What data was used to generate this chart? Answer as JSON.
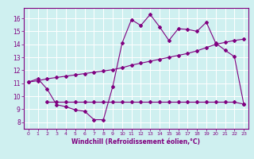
{
  "xlabel": "Windchill (Refroidissement éolien,°C)",
  "background_color": "#cff0f0",
  "grid_color": "#ffffff",
  "line_color": "#800080",
  "xlim": [
    -0.5,
    23.5
  ],
  "ylim": [
    7.5,
    16.8
  ],
  "xticks": [
    0,
    1,
    2,
    3,
    4,
    5,
    6,
    7,
    8,
    9,
    10,
    11,
    12,
    13,
    14,
    15,
    16,
    17,
    18,
    19,
    20,
    21,
    22,
    23
  ],
  "yticks": [
    8,
    9,
    10,
    11,
    12,
    13,
    14,
    15,
    16
  ],
  "line1_x": [
    0,
    1,
    2,
    3,
    4,
    5,
    6,
    7,
    8,
    9,
    10,
    11,
    12,
    13,
    14,
    15,
    16,
    17,
    18,
    19,
    20,
    21,
    22,
    23
  ],
  "line1_y": [
    11.1,
    11.35,
    10.55,
    9.35,
    9.2,
    8.95,
    8.85,
    8.2,
    8.2,
    10.75,
    14.1,
    15.9,
    15.45,
    16.3,
    15.35,
    14.3,
    15.2,
    15.15,
    15.0,
    15.7,
    14.1,
    13.55,
    13.05,
    9.4
  ],
  "line2_x": [
    0,
    1,
    2,
    3,
    4,
    5,
    6,
    7,
    8,
    9,
    10,
    11,
    12,
    13,
    14,
    15,
    16,
    17,
    18,
    19,
    20,
    21,
    22,
    23
  ],
  "line2_y": [
    11.1,
    11.2,
    11.35,
    11.45,
    11.55,
    11.65,
    11.75,
    11.85,
    11.95,
    12.05,
    12.2,
    12.4,
    12.55,
    12.7,
    12.85,
    13.0,
    13.15,
    13.3,
    13.5,
    13.75,
    14.0,
    14.15,
    14.3,
    14.4
  ],
  "line3_x": [
    2,
    3,
    4,
    5,
    6,
    7,
    8,
    9,
    10,
    11,
    12,
    13,
    14,
    15,
    16,
    17,
    18,
    19,
    20,
    21,
    22,
    23
  ],
  "line3_y": [
    9.55,
    9.55,
    9.55,
    9.55,
    9.55,
    9.55,
    9.55,
    9.55,
    9.55,
    9.55,
    9.55,
    9.55,
    9.55,
    9.55,
    9.55,
    9.55,
    9.55,
    9.55,
    9.55,
    9.55,
    9.55,
    9.4
  ]
}
